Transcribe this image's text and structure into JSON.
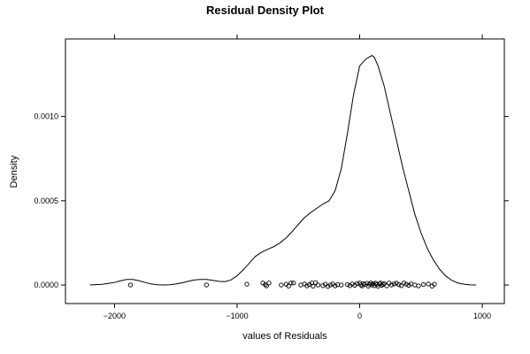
{
  "chart_data": {
    "type": "line",
    "title": "Residual Density Plot",
    "xlabel": "values of Residuals",
    "ylabel": "Density",
    "xlim": [
      -2400,
      1180
    ],
    "ylim": [
      -0.00011,
      0.00146
    ],
    "x_ticks": [
      -2000,
      -1000,
      0,
      1000
    ],
    "x_tick_labels": [
      "−2000",
      "−1000",
      "0",
      "1000"
    ],
    "y_ticks": [
      0.0,
      0.0005,
      0.001
    ],
    "y_tick_labels": [
      "0.0000",
      "0.0005",
      "0.0010"
    ],
    "grid": false,
    "series": [
      {
        "kind": "density-line",
        "x": [
          -2200,
          -2100,
          -2000,
          -1950,
          -1900,
          -1850,
          -1800,
          -1750,
          -1700,
          -1650,
          -1600,
          -1550,
          -1500,
          -1450,
          -1400,
          -1350,
          -1300,
          -1250,
          -1200,
          -1150,
          -1100,
          -1050,
          -1000,
          -950,
          -900,
          -850,
          -800,
          -750,
          -700,
          -650,
          -600,
          -550,
          -500,
          -450,
          -400,
          -350,
          -300,
          -250,
          -200,
          -150,
          -100,
          -50,
          0,
          50,
          100,
          120,
          150,
          200,
          250,
          300,
          350,
          400,
          450,
          500,
          550,
          600,
          650,
          700,
          750,
          800,
          850,
          900,
          950
        ],
        "y": [
          0.0,
          4e-06,
          1.5e-05,
          2.5e-05,
          3.3e-05,
          3.3e-05,
          2.5e-05,
          1.5e-05,
          6e-06,
          1.5e-06,
          0.0,
          1.5e-06,
          6e-06,
          1.3e-05,
          2.2e-05,
          3e-05,
          3.3e-05,
          3.3e-05,
          2.8e-05,
          2.2e-05,
          2e-05,
          3e-05,
          5.5e-05,
          9e-05,
          0.00013,
          0.00017,
          0.000195,
          0.000212,
          0.000228,
          0.00025,
          0.00028,
          0.000318,
          0.00036,
          0.0004,
          0.00043,
          0.000455,
          0.00048,
          0.0005,
          0.00056,
          0.00069,
          0.0009,
          0.00113,
          0.0013,
          0.00134,
          0.001362,
          0.00135,
          0.0013,
          0.00118,
          0.00102,
          0.00086,
          0.0007,
          0.00056,
          0.00042,
          0.00031,
          0.00022,
          0.00015,
          9.5e-05,
          5.5e-05,
          2.8e-05,
          1.2e-05,
          5e-06,
          1e-06,
          0.0
        ]
      },
      {
        "kind": "rug-points",
        "x": [
          -1870,
          -1250,
          -920,
          -790,
          -770,
          -760,
          -740,
          -640,
          -600,
          -580,
          -560,
          -540,
          -480,
          -450,
          -430,
          -410,
          -390,
          -380,
          -360,
          -340,
          -300,
          -280,
          -260,
          -240,
          -220,
          -200,
          -180,
          -150,
          -100,
          -80,
          -60,
          -40,
          -20,
          0,
          10,
          20,
          30,
          40,
          60,
          70,
          80,
          90,
          100,
          110,
          120,
          130,
          140,
          150,
          160,
          170,
          180,
          190,
          200,
          220,
          240,
          260,
          280,
          300,
          320,
          340,
          360,
          380,
          400,
          420,
          450,
          480,
          520,
          560,
          590,
          610
        ],
        "y": [
          0.0,
          0.0,
          5e-06,
          1.2e-05,
          3e-06,
          -5e-06,
          1.2e-05,
          0.0,
          5e-06,
          -6e-06,
          1.2e-05,
          1.2e-05,
          0.0,
          6e-06,
          -5e-06,
          3e-06,
          1.2e-05,
          -6e-06,
          1.4e-05,
          0.0,
          -4e-06,
          5e-06,
          -8e-06,
          0.0,
          6e-06,
          -5e-06,
          2e-06,
          0.0,
          3e-06,
          -4e-06,
          6e-06,
          -2e-06,
          9e-06,
          1.2e-05,
          0.0,
          -5e-06,
          8e-06,
          3e-06,
          1e-05,
          -6e-06,
          5e-06,
          1.2e-05,
          0.0,
          8e-06,
          -4e-06,
          1.1e-05,
          3e-06,
          -7e-06,
          6e-06,
          1.2e-05,
          -2e-06,
          4e-06,
          9e-06,
          -5e-06,
          1.2e-05,
          0.0,
          6e-06,
          1.1e-05,
          2e-06,
          -4e-06,
          1.2e-05,
          5e-06,
          -2e-06,
          6e-06,
          0.0,
          -5e-06,
          3e-06,
          6e-06,
          -6e-06,
          5e-06
        ]
      }
    ]
  }
}
